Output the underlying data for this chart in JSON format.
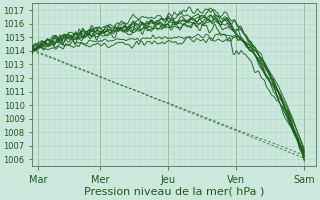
{
  "xlabel": "Pression niveau de la mer( hPa )",
  "ylim": [
    1005.5,
    1017.5
  ],
  "xlim": [
    0,
    100
  ],
  "yticks": [
    1006,
    1007,
    1008,
    1009,
    1010,
    1011,
    1012,
    1013,
    1014,
    1015,
    1016,
    1017
  ],
  "xtick_positions": [
    2,
    24,
    48,
    72,
    96
  ],
  "xtick_labels": [
    "Mar",
    "Mer",
    "Jeu",
    "Ven",
    "Sam"
  ],
  "bg_color": "#cce8dc",
  "grid_minor_color": "#aad4c4",
  "grid_major_color": "#88bbaa",
  "line_color": "#1a5c1a",
  "xlabel_fontsize": 8,
  "ytick_fontsize": 6,
  "xtick_fontsize": 7
}
